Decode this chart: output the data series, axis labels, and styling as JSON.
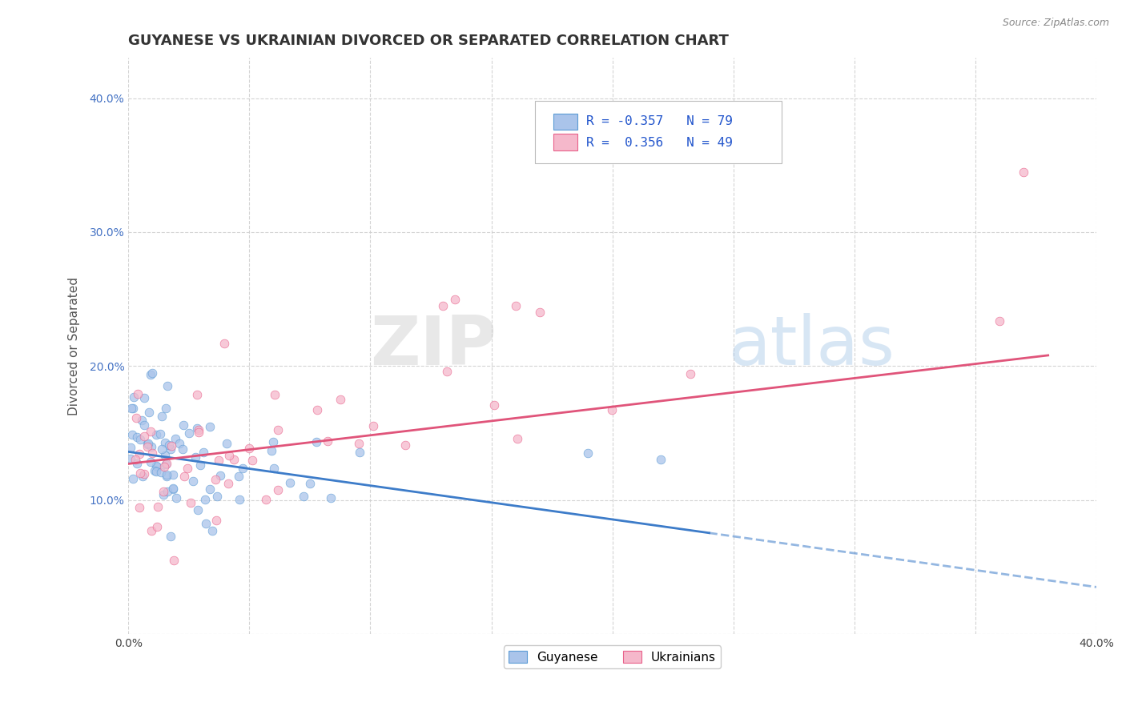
{
  "title": "GUYANESE VS UKRAINIAN DIVORCED OR SEPARATED CORRELATION CHART",
  "source": "Source: ZipAtlas.com",
  "ylabel": "Divorced or Separated",
  "xlim": [
    0.0,
    0.4
  ],
  "ylim": [
    0.0,
    0.43
  ],
  "guyanese_color": "#aac4ea",
  "ukrainian_color": "#f5b8cb",
  "guyanese_edge_color": "#5b9bd5",
  "ukrainian_edge_color": "#e8608a",
  "guyanese_line_color": "#3d7cc9",
  "ukrainian_line_color": "#e0547a",
  "R_guyanese": -0.357,
  "N_guyanese": 79,
  "R_ukrainian": 0.356,
  "N_ukrainian": 49,
  "background_color": "#ffffff",
  "grid_color": "#d0d0d0",
  "title_fontsize": 13,
  "label_fontsize": 11,
  "tick_fontsize": 10,
  "watermark_zip": "ZIP",
  "watermark_atlas": "atlas",
  "legend_label1": "R = -0.357   N = 79",
  "legend_label2": "R =  0.356   N = 49",
  "bottom_legend1": "Guyanese",
  "bottom_legend2": "Ukrainians"
}
